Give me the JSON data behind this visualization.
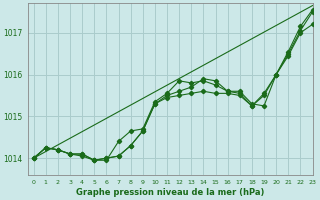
{
  "background_color": "#cce8e8",
  "grid_color": "#aacccc",
  "line_color": "#1a6b1a",
  "title": "Graphe pression niveau de la mer (hPa)",
  "xlim": [
    -0.5,
    23
  ],
  "ylim": [
    1013.6,
    1017.7
  ],
  "yticks": [
    1014,
    1015,
    1016,
    1017
  ],
  "xticks": [
    0,
    1,
    2,
    3,
    4,
    5,
    6,
    7,
    8,
    9,
    10,
    11,
    12,
    13,
    14,
    15,
    16,
    17,
    18,
    19,
    20,
    21,
    22,
    23
  ],
  "line_smooth": {
    "x": [
      0,
      1,
      2,
      3,
      4,
      5,
      6,
      7,
      8,
      9,
      10,
      11,
      12,
      13,
      14,
      15,
      16,
      17,
      18,
      19,
      20,
      21,
      22,
      23
    ],
    "y": [
      1014.0,
      1014.25,
      1014.2,
      1014.1,
      1014.05,
      1013.95,
      1014.0,
      1014.05,
      1014.3,
      1014.65,
      1015.3,
      1015.45,
      1015.5,
      1015.55,
      1015.6,
      1015.55,
      1015.55,
      1015.5,
      1015.25,
      1015.5,
      1016.0,
      1016.45,
      1017.0,
      1017.2
    ]
  },
  "line_wiggly": {
    "x": [
      0,
      1,
      2,
      3,
      4,
      5,
      6,
      7,
      8,
      9,
      10,
      11,
      12,
      13,
      14,
      15,
      16,
      17,
      18,
      19,
      20,
      21,
      22,
      23
    ],
    "y": [
      1014.0,
      1014.25,
      1014.2,
      1014.1,
      1014.1,
      1013.95,
      1013.95,
      1014.4,
      1014.65,
      1014.7,
      1015.35,
      1015.55,
      1015.85,
      1015.8,
      1015.85,
      1015.75,
      1015.6,
      1015.6,
      1015.3,
      1015.25,
      1016.0,
      1016.5,
      1017.05,
      1017.5
    ]
  },
  "line_upper": {
    "x": [
      0,
      1,
      2,
      3,
      4,
      5,
      6,
      7,
      8,
      9,
      10,
      11,
      12,
      13,
      14,
      15,
      16,
      17,
      18,
      19,
      20,
      21,
      22,
      23
    ],
    "y": [
      1014.0,
      1014.25,
      1014.2,
      1014.1,
      1014.1,
      1013.95,
      1014.0,
      1014.05,
      1014.3,
      1014.65,
      1015.3,
      1015.5,
      1015.6,
      1015.7,
      1015.9,
      1015.85,
      1015.6,
      1015.55,
      1015.25,
      1015.55,
      1016.0,
      1016.55,
      1017.15,
      1017.55
    ]
  },
  "line_straight": {
    "x": [
      0,
      23
    ],
    "y": [
      1014.0,
      1017.65
    ]
  }
}
